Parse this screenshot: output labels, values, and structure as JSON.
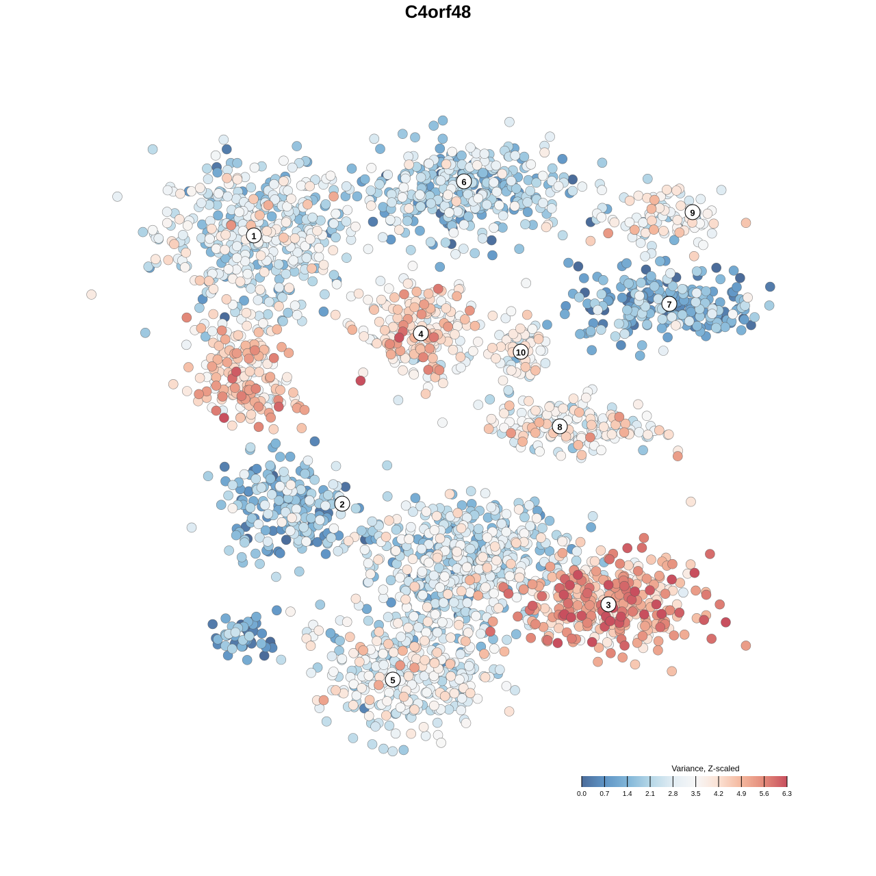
{
  "chart_data": {
    "type": "scatter",
    "title": "C4orf48",
    "xlabel": "",
    "ylabel": "",
    "xlim": [
      -45,
      50
    ],
    "ylim": [
      -46,
      47
    ],
    "grid": false,
    "legend": {
      "title": "Variance, Z-scaled",
      "placement": "bottom-right",
      "ticks": [
        "0.0",
        "0.7",
        "1.4",
        "2.1",
        "2.8",
        "3.5",
        "4.2",
        "4.9",
        "5.6",
        "6.3"
      ],
      "range": [
        0,
        6.3
      ],
      "colors": [
        "#4b6c9a",
        "#5f94c5",
        "#80b5d8",
        "#b5d7e7",
        "#e2edf4",
        "#f7f7f7",
        "#fbe1d3",
        "#f4b79d",
        "#e38979",
        "#c84f5e"
      ]
    },
    "clusters": [
      {
        "label": "1",
        "center": [
          -26.9,
          29.6
        ],
        "spread": [
          10,
          8
        ],
        "n": 420,
        "mean_value": 2.6
      },
      {
        "label": "1",
        "center": [
          -30,
          12
        ],
        "spread": [
          5,
          5
        ],
        "n": 110,
        "mean_value": 4.0
      },
      {
        "label": "1",
        "center": [
          -27,
          6
        ],
        "spread": [
          5,
          3
        ],
        "n": 70,
        "mean_value": 4.3
      },
      {
        "label": "6",
        "center": [
          3.8,
          36
        ],
        "spread": [
          11,
          5
        ],
        "n": 360,
        "mean_value": 1.9
      },
      {
        "label": "9",
        "center": [
          33,
          32
        ],
        "spread": [
          6,
          3
        ],
        "n": 90,
        "mean_value": 3.0
      },
      {
        "label": "7",
        "center": [
          33.8,
          19.6
        ],
        "spread": [
          10,
          4
        ],
        "n": 220,
        "mean_value": 1.3
      },
      {
        "label": "4",
        "center": [
          -2.5,
          15.3
        ],
        "spread": [
          6,
          5
        ],
        "n": 200,
        "mean_value": 3.9
      },
      {
        "label": "10",
        "center": [
          12.1,
          12.6
        ],
        "spread": [
          3,
          4
        ],
        "n": 60,
        "mean_value": 3.3
      },
      {
        "label": "8",
        "center": [
          20,
          1.7
        ],
        "spread": [
          9,
          3
        ],
        "n": 160,
        "mean_value": 3.4
      },
      {
        "label": "2",
        "center": [
          -22,
          -10
        ],
        "spread": [
          7,
          5
        ],
        "n": 200,
        "mean_value": 1.5
      },
      {
        "label": "3",
        "center": [
          24.9,
          -24.3
        ],
        "spread": [
          9,
          5
        ],
        "n": 330,
        "mean_value": 4.9
      },
      {
        "label": "5",
        "center": [
          -4,
          -34
        ],
        "spread": [
          9,
          6
        ],
        "n": 330,
        "mean_value": 2.9
      },
      {
        "label": "",
        "center": [
          4,
          -18
        ],
        "spread": [
          11,
          7
        ],
        "n": 520,
        "mean_value": 2.4
      },
      {
        "label": "",
        "center": [
          -28,
          -29
        ],
        "spread": [
          4,
          2
        ],
        "n": 45,
        "mean_value": 0.9
      }
    ],
    "label_positions": [
      {
        "label": "1",
        "at": [
          -26.9,
          29.6
        ]
      },
      {
        "label": "6",
        "at": [
          3.8,
          37.5
        ]
      },
      {
        "label": "9",
        "at": [
          37.2,
          33
        ]
      },
      {
        "label": "7",
        "at": [
          33.8,
          19.6
        ]
      },
      {
        "label": "4",
        "at": [
          -2.5,
          15.3
        ]
      },
      {
        "label": "10",
        "at": [
          12.1,
          12.6
        ]
      },
      {
        "label": "8",
        "at": [
          17.8,
          1.7
        ]
      },
      {
        "label": "2",
        "at": [
          -14,
          -9.6
        ]
      },
      {
        "label": "3",
        "at": [
          24.9,
          -24.3
        ]
      },
      {
        "label": "5",
        "at": [
          -6.6,
          -35.3
        ]
      }
    ]
  }
}
